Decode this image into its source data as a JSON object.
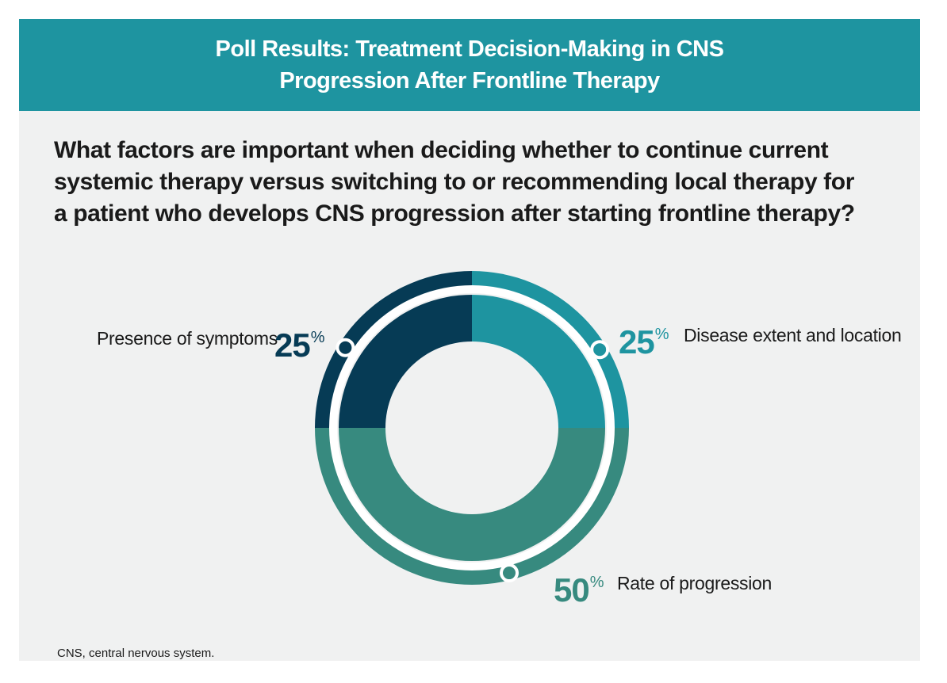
{
  "header": {
    "title_line1": "Poll Results: Treatment Decision-Making in CNS",
    "title_line2": "Progression After Frontline Therapy"
  },
  "question": {
    "line1": "What factors are important when deciding whether to continue current",
    "line2": "systemic therapy versus switching to or recommending local therapy for",
    "line3": "a patient who develops CNS progression after starting frontline therapy?"
  },
  "chart_data": {
    "type": "pie",
    "variant": "donut",
    "unit_symbol": "%",
    "slices": [
      {
        "label": "Disease extent and location",
        "value": 25,
        "color": "#1e94a0"
      },
      {
        "label": "Rate of progression",
        "value": 50,
        "color": "#378a7f"
      },
      {
        "label": "Presence of symptoms",
        "value": 25,
        "color": "#063b55"
      }
    ]
  },
  "footnote": "CNS, central nervous system."
}
